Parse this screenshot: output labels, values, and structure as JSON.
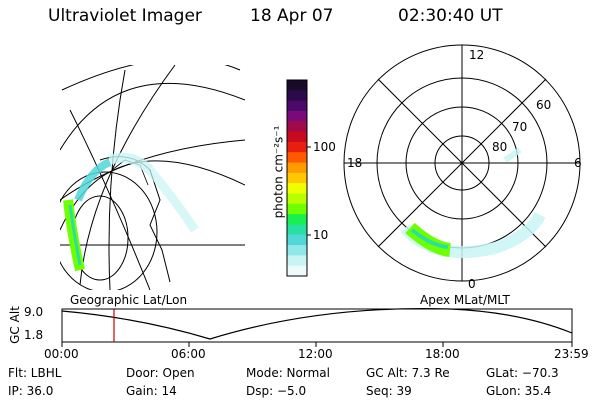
{
  "header": {
    "instrument": "Ultraviolet Imager",
    "date": "18 Apr 07",
    "time": "02:30:40 UT"
  },
  "colorbar": {
    "unit_label": "photon cm⁻²s⁻¹",
    "ticks": [
      "100",
      "10"
    ],
    "scale": "log",
    "colors": [
      "#1a0a2a",
      "#2a0a4a",
      "#4a0a6a",
      "#7a0a7a",
      "#a00a4a",
      "#c80a1e",
      "#e81e10",
      "#ff5a00",
      "#ff9a00",
      "#ffc800",
      "#f0ff00",
      "#b8ff00",
      "#6eff00",
      "#18f050",
      "#28e0a0",
      "#50d8d8",
      "#90e8e8",
      "#c8f4f4",
      "#eefafa"
    ]
  },
  "polar_plot": {
    "mlt_labels": {
      "top": "12",
      "left": "18",
      "right": "6",
      "bottom": "0"
    },
    "lat_labels": [
      "60",
      "70",
      "80"
    ]
  },
  "map": {
    "projection_label": "Geographic Lat/Lon"
  },
  "polar_caption": "Apex MLat/MLT",
  "altitude_panel": {
    "axis_label": "GC Alt",
    "y_ticks": [
      "9.0",
      "1.8"
    ],
    "x_ticks": [
      "00:00",
      "06:00",
      "12:00",
      "18:00",
      "23:59"
    ],
    "marker_time": "02:30"
  },
  "status": {
    "filter": "Flt: LBHL",
    "door": "Door: Open",
    "mode": "Mode: Normal",
    "gc_alt": "GC Alt: 7.3 Re",
    "glat": "GLat: −70.3",
    "ip": "IP: 36.0",
    "gain": "Gain: 14",
    "dsp": "Dsp:   −5.0",
    "seq": "Seq: 39",
    "glon": "GLon:  35.4"
  }
}
